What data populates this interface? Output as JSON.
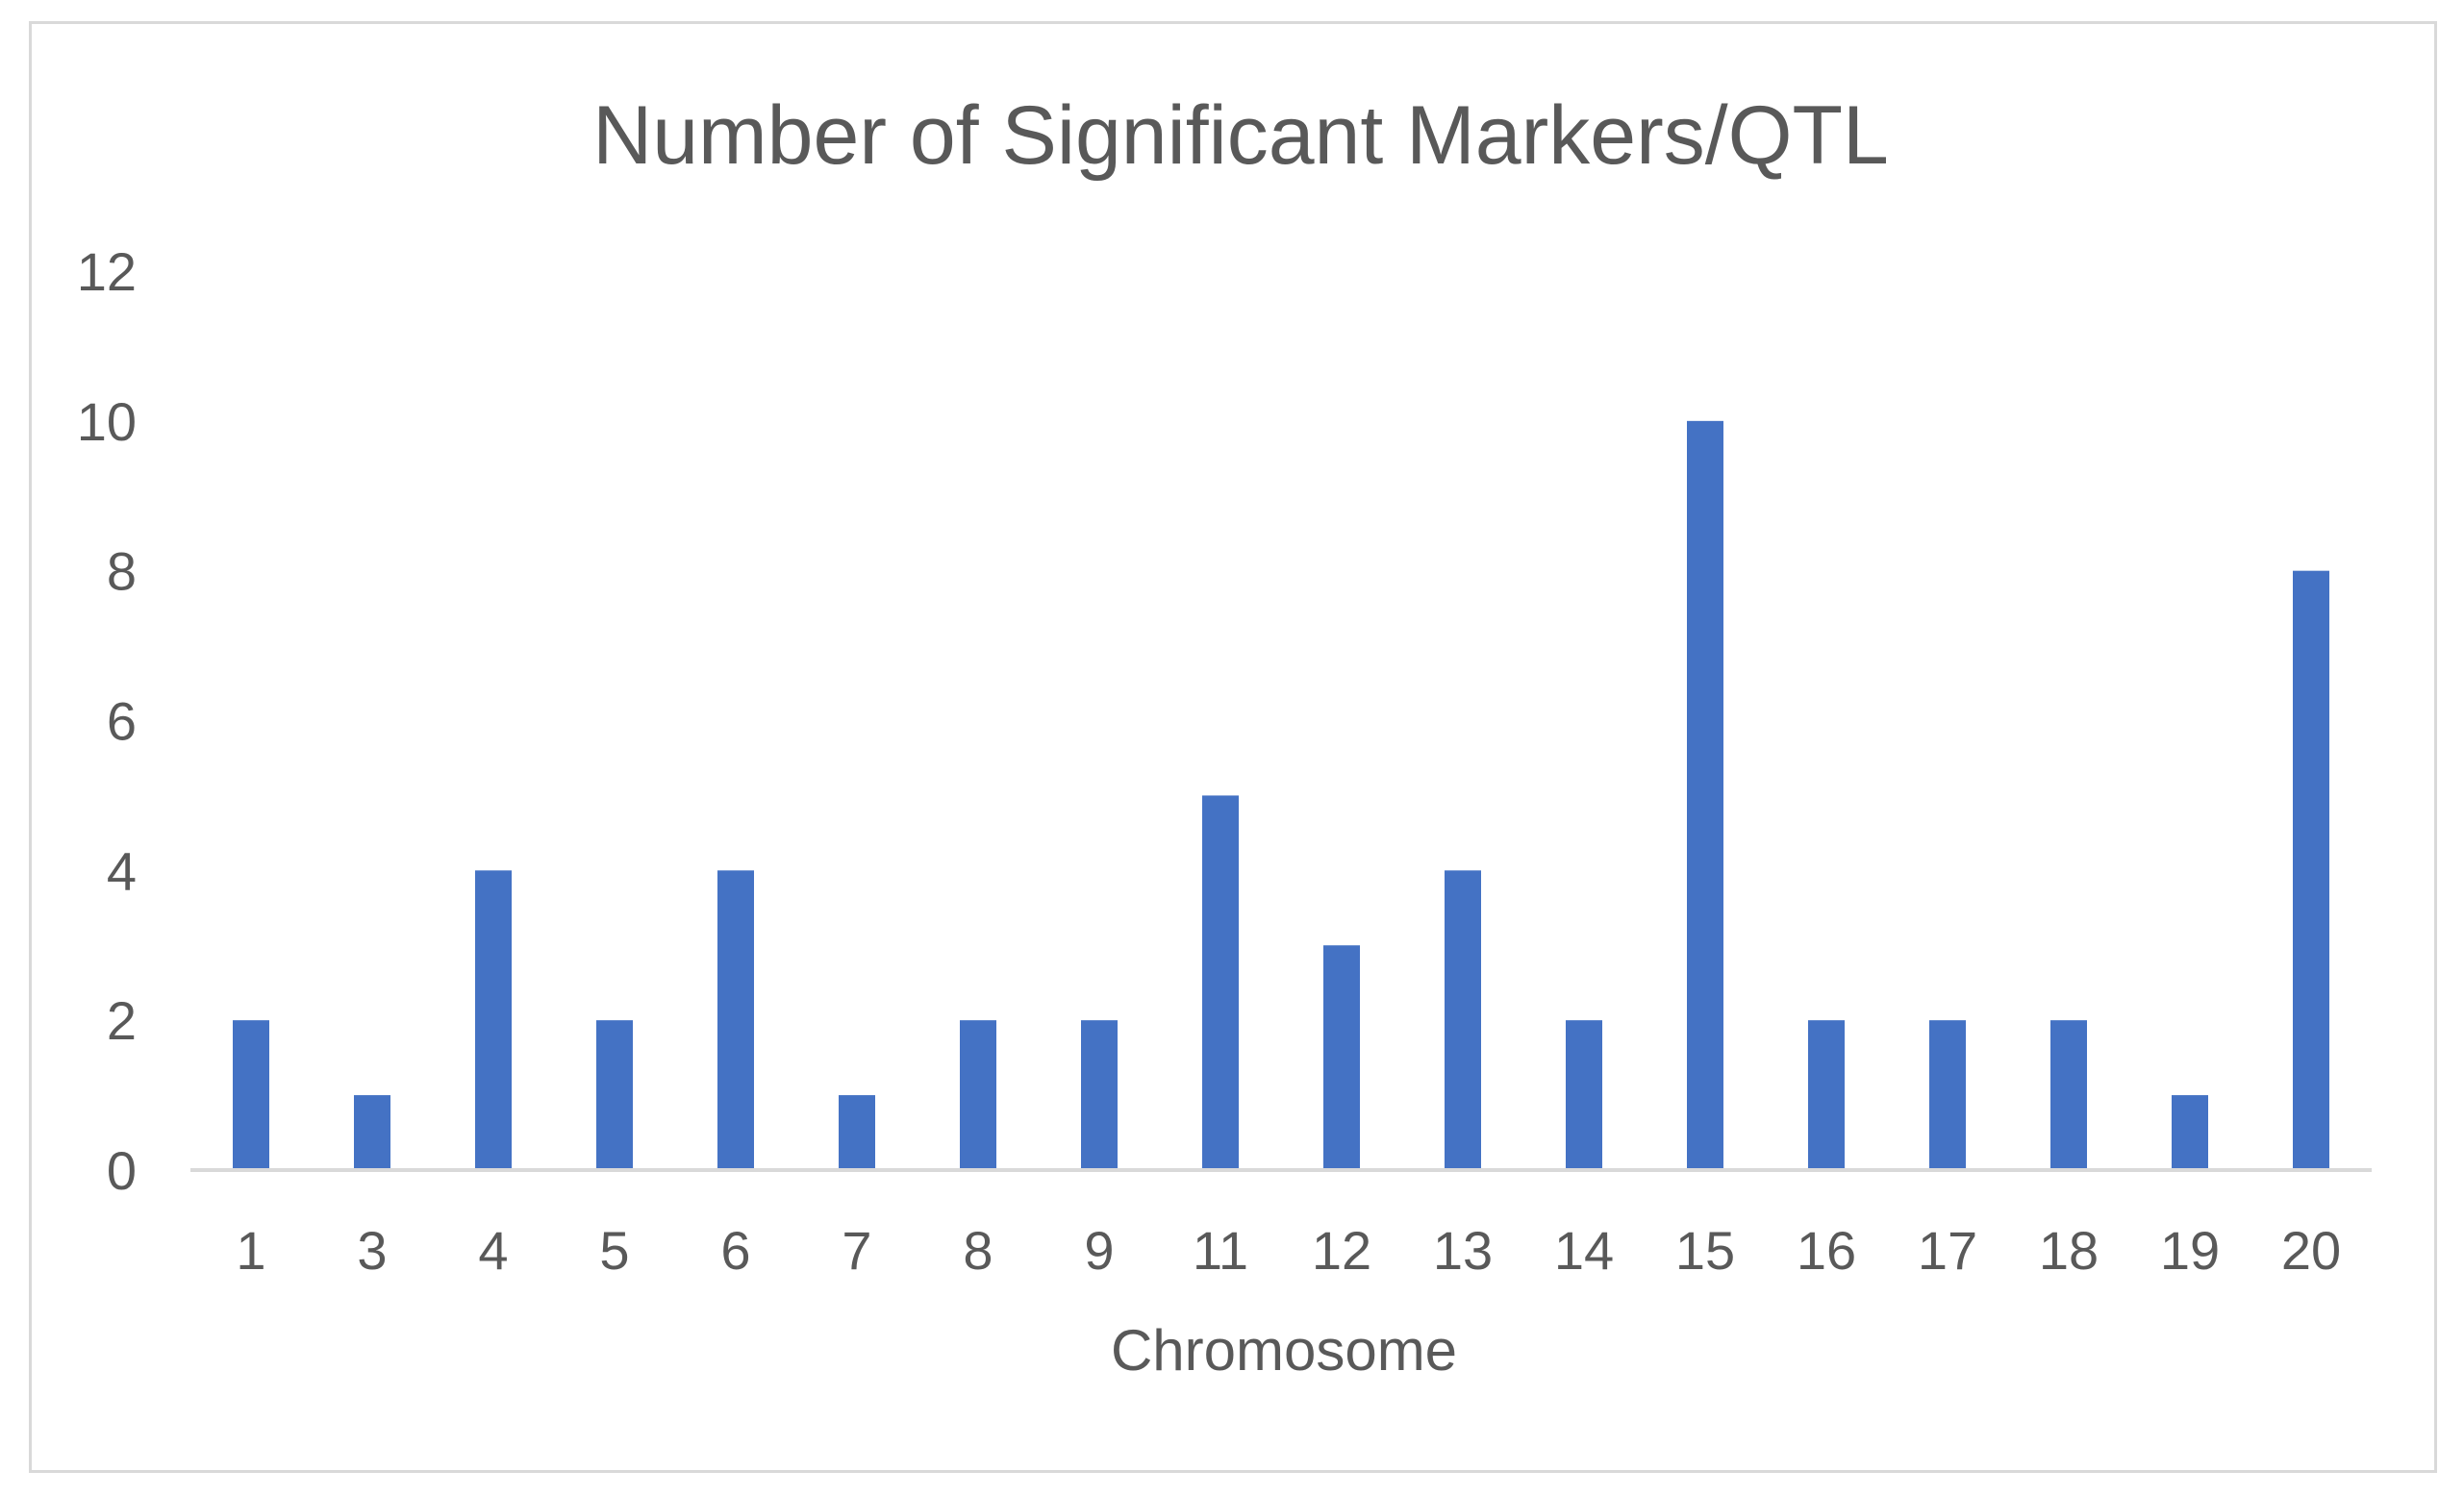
{
  "chart_data": {
    "type": "bar",
    "title": "Number of Significant Markers/QTL",
    "xlabel": "Chromosome",
    "ylabel": "",
    "categories": [
      "1",
      "3",
      "4",
      "5",
      "6",
      "7",
      "8",
      "9",
      "11",
      "12",
      "13",
      "14",
      "15",
      "16",
      "17",
      "18",
      "19",
      "20"
    ],
    "values": [
      2,
      1,
      4,
      2,
      4,
      1,
      2,
      2,
      5,
      3,
      4,
      2,
      10,
      2,
      2,
      2,
      1,
      8
    ],
    "ylim": [
      0,
      12
    ],
    "yticks": [
      "0",
      "2",
      "4",
      "6",
      "8",
      "10",
      "12"
    ],
    "grid": false,
    "legend": "none",
    "bar_color": "#4472c4",
    "axis_color": "#d9d9d9",
    "text_color": "#595959"
  }
}
